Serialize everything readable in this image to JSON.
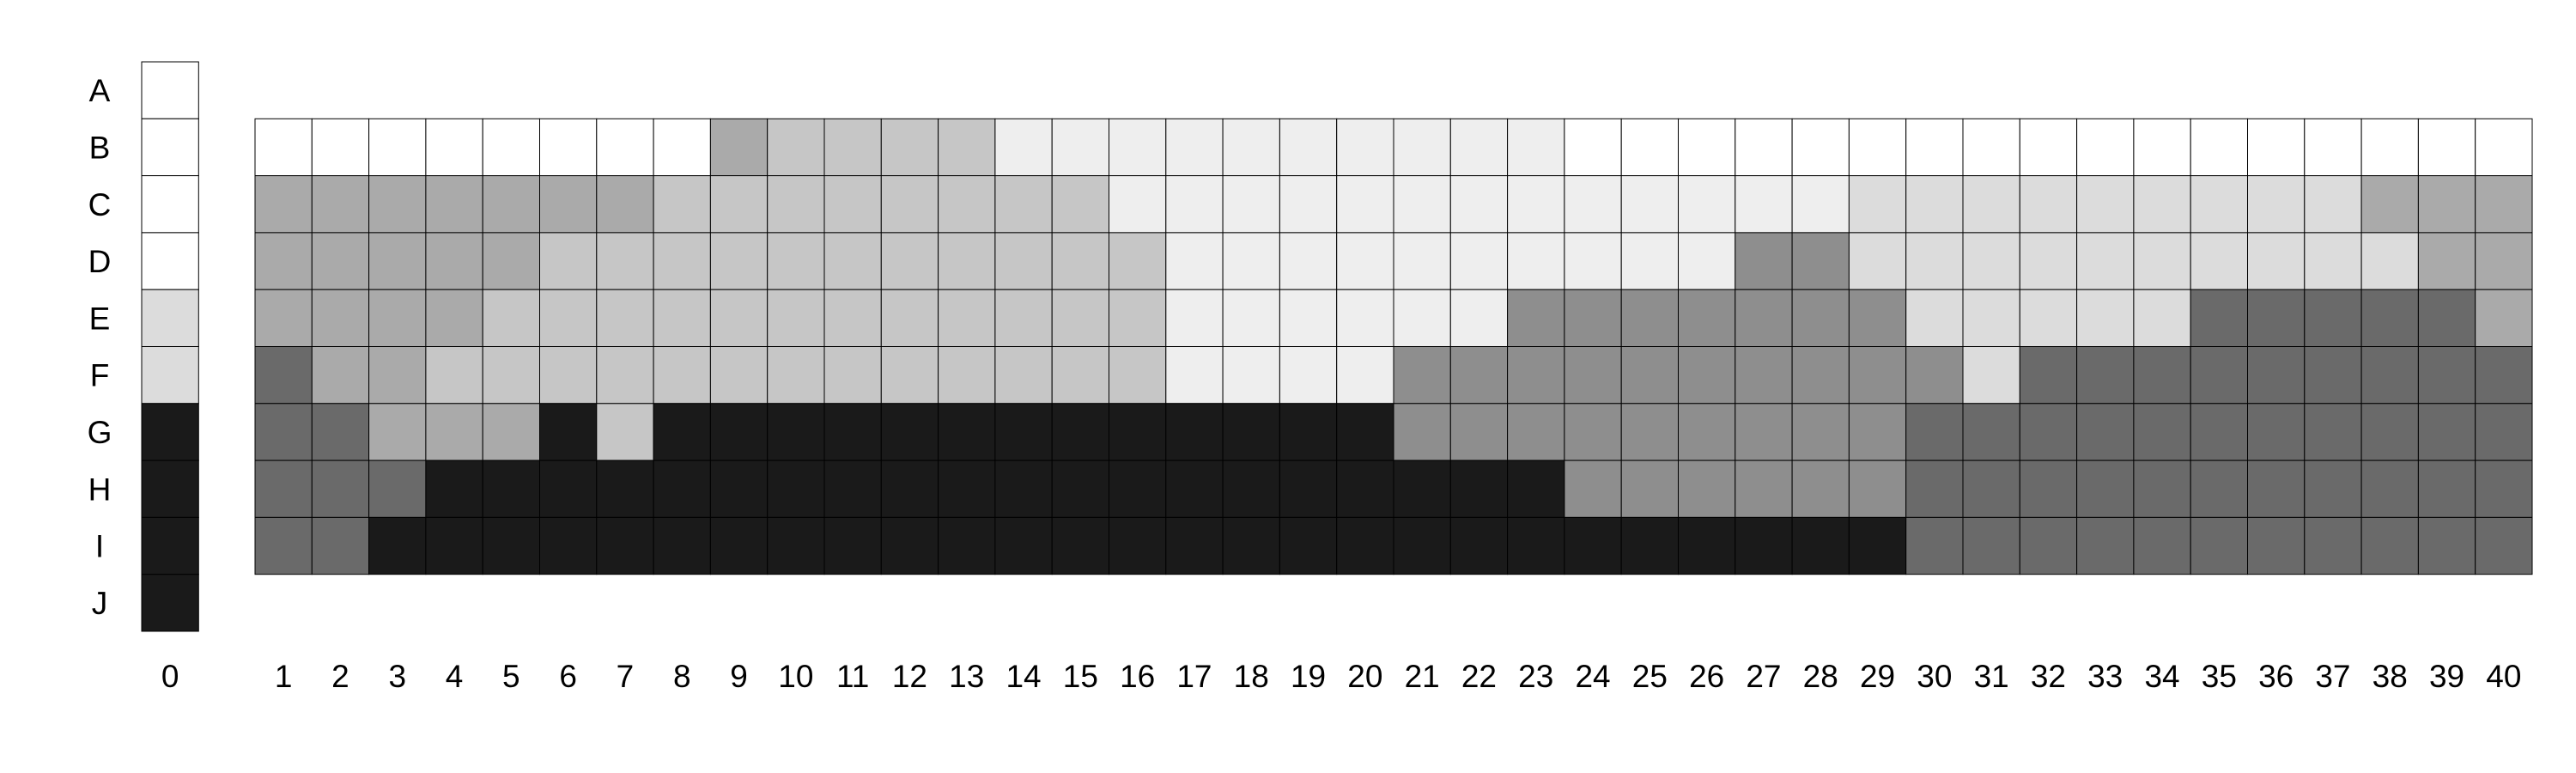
{
  "legend": {
    "column_label": "0",
    "row_codes": [
      "A",
      "B",
      "C",
      "D",
      "E",
      "F",
      "G",
      "H",
      "I",
      "J"
    ],
    "codes": {
      "A": "#ffffff",
      "B": "#ffffff",
      "C": "#ffffff",
      "D": "#ffffff",
      "E": "#dcdcdc",
      "F": "#dcdcdc",
      "G": "#1a1a1a",
      "H": "#1a1a1a",
      "I": "#1a1a1a",
      "J": "#1a1a1a"
    }
  },
  "grid": {
    "column_labels": [
      "1",
      "2",
      "3",
      "4",
      "5",
      "6",
      "7",
      "8",
      "9",
      "10",
      "11",
      "12",
      "13",
      "14",
      "15",
      "16",
      "17",
      "18",
      "19",
      "20",
      "21",
      "22",
      "23",
      "24",
      "25",
      "26",
      "27",
      "28",
      "29",
      "30",
      "31",
      "32",
      "33",
      "34",
      "35",
      "36",
      "37",
      "38",
      "39",
      "40"
    ],
    "rows": [
      {
        "label": "B",
        "shades": [
          "W",
          "W",
          "W",
          "W",
          "W",
          "W",
          "W",
          "W",
          "M",
          "L",
          "L",
          "L",
          "L",
          "P",
          "P",
          "P",
          "P",
          "P",
          "P",
          "P",
          "P",
          "P",
          "P",
          "W",
          "W",
          "W",
          "W",
          "W",
          "W",
          "W",
          "W",
          "W",
          "W",
          "W",
          "W",
          "W",
          "W",
          "W",
          "W",
          "W"
        ]
      },
      {
        "label": "C",
        "shades": [
          "M",
          "M",
          "M",
          "M",
          "M",
          "M",
          "M",
          "L",
          "L",
          "L",
          "L",
          "L",
          "L",
          "L",
          "L",
          "P",
          "P",
          "P",
          "P",
          "P",
          "P",
          "P",
          "P",
          "P",
          "P",
          "P",
          "P",
          "P",
          "S",
          "S",
          "S",
          "S",
          "S",
          "S",
          "S",
          "S",
          "S",
          "M",
          "M",
          "M"
        ]
      },
      {
        "label": "D",
        "shades": [
          "M",
          "M",
          "M",
          "M",
          "M",
          "L",
          "L",
          "L",
          "L",
          "L",
          "L",
          "L",
          "L",
          "L",
          "L",
          "L",
          "P",
          "P",
          "P",
          "P",
          "P",
          "P",
          "P",
          "P",
          "P",
          "P",
          "G",
          "G",
          "S",
          "S",
          "S",
          "S",
          "S",
          "S",
          "S",
          "S",
          "S",
          "S",
          "M",
          "M"
        ]
      },
      {
        "label": "E",
        "shades": [
          "M",
          "M",
          "M",
          "M",
          "L",
          "L",
          "L",
          "L",
          "L",
          "L",
          "L",
          "L",
          "L",
          "L",
          "L",
          "L",
          "P",
          "P",
          "P",
          "P",
          "P",
          "P",
          "G",
          "G",
          "G",
          "G",
          "G",
          "G",
          "G",
          "S",
          "S",
          "S",
          "S",
          "S",
          "D",
          "D",
          "D",
          "D",
          "D",
          "M"
        ]
      },
      {
        "label": "F",
        "shades": [
          "D",
          "M",
          "M",
          "L",
          "L",
          "L",
          "L",
          "L",
          "L",
          "L",
          "L",
          "L",
          "L",
          "L",
          "L",
          "L",
          "P",
          "P",
          "P",
          "P",
          "G",
          "G",
          "G",
          "G",
          "G",
          "G",
          "G",
          "G",
          "G",
          "G",
          "S",
          "D",
          "D",
          "D",
          "D",
          "D",
          "D",
          "D",
          "D",
          "D"
        ]
      },
      {
        "label": "G",
        "shades": [
          "D",
          "D",
          "M",
          "M",
          "M",
          "K",
          "L",
          "K",
          "K",
          "K",
          "K",
          "K",
          "K",
          "K",
          "K",
          "K",
          "K",
          "K",
          "K",
          "K",
          "G",
          "G",
          "G",
          "G",
          "G",
          "G",
          "G",
          "G",
          "G",
          "D",
          "D",
          "D",
          "D",
          "D",
          "D",
          "D",
          "D",
          "D",
          "D",
          "D"
        ]
      },
      {
        "label": "H",
        "shades": [
          "D",
          "D",
          "D",
          "K",
          "K",
          "K",
          "K",
          "K",
          "K",
          "K",
          "K",
          "K",
          "K",
          "K",
          "K",
          "K",
          "K",
          "K",
          "K",
          "K",
          "K",
          "K",
          "K",
          "G",
          "G",
          "G",
          "G",
          "G",
          "G",
          "D",
          "D",
          "D",
          "D",
          "D",
          "D",
          "D",
          "D",
          "D",
          "D",
          "D"
        ]
      },
      {
        "label": "I",
        "shades": [
          "D",
          "D",
          "K",
          "K",
          "K",
          "K",
          "K",
          "K",
          "K",
          "K",
          "K",
          "K",
          "K",
          "K",
          "K",
          "K",
          "K",
          "K",
          "K",
          "K",
          "K",
          "K",
          "K",
          "K",
          "K",
          "K",
          "K",
          "K",
          "K",
          "D",
          "D",
          "D",
          "D",
          "D",
          "D",
          "D",
          "D",
          "D",
          "D",
          "D"
        ]
      }
    ]
  },
  "palette": {
    "W": "#ffffff",
    "P": "#eeeeee",
    "S": "#dcdcdc",
    "L": "#c6c6c6",
    "M": "#aaaaaa",
    "G": "#8e8e8e",
    "D": "#6a6a6a",
    "K": "#1a1a1a"
  }
}
